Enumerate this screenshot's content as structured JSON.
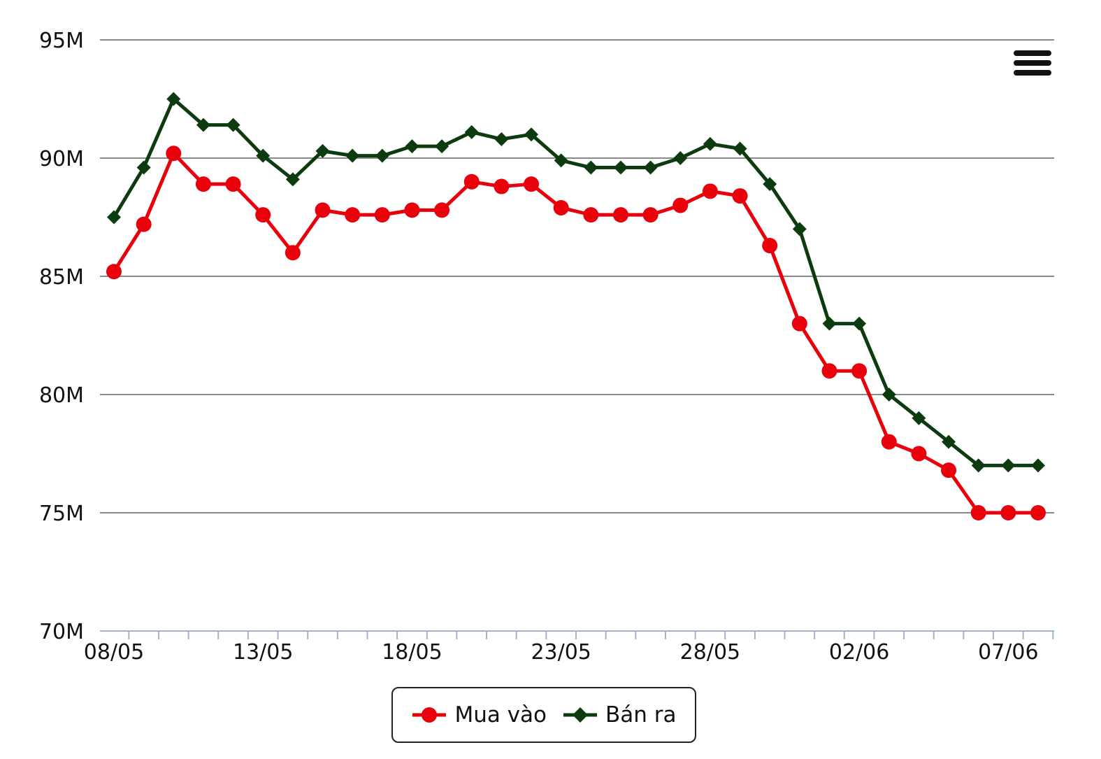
{
  "chart_data": {
    "type": "line",
    "x": [
      "08/05",
      "09/05",
      "10/05",
      "11/05",
      "12/05",
      "13/05",
      "14/05",
      "15/05",
      "16/05",
      "17/05",
      "18/05",
      "19/05",
      "20/05",
      "21/05",
      "22/05",
      "23/05",
      "24/05",
      "25/05",
      "26/05",
      "27/05",
      "28/05",
      "29/05",
      "30/05",
      "31/05",
      "01/06",
      "02/06",
      "03/06",
      "04/06",
      "05/06",
      "06/06",
      "07/06",
      "08/06"
    ],
    "x_tick_labels": [
      "08/05",
      "13/05",
      "18/05",
      "23/05",
      "28/05",
      "02/06",
      "07/06"
    ],
    "y_tick_labels": [
      "70M",
      "75M",
      "80M",
      "85M",
      "90M",
      "95M"
    ],
    "ylim": [
      70,
      95
    ],
    "y_unit": "M",
    "grid": true,
    "legend_position": "bottom",
    "series": [
      {
        "name": "Mua vào",
        "color": "#e8000b",
        "marker": "circle",
        "values": [
          85.2,
          87.2,
          90.2,
          88.9,
          88.9,
          87.6,
          86.0,
          87.8,
          87.6,
          87.6,
          87.8,
          87.8,
          89.0,
          88.8,
          88.9,
          87.9,
          87.6,
          87.6,
          87.6,
          88.0,
          88.6,
          88.4,
          86.3,
          83.0,
          81.0,
          81.0,
          78.0,
          77.5,
          76.8,
          75.0,
          75.0,
          75.0
        ]
      },
      {
        "name": "Bán ra",
        "color": "#0d3b10",
        "marker": "diamond",
        "values": [
          87.5,
          89.6,
          92.5,
          91.4,
          91.4,
          90.1,
          89.1,
          90.3,
          90.1,
          90.1,
          90.5,
          90.5,
          91.1,
          90.8,
          91.0,
          89.9,
          89.6,
          89.6,
          89.6,
          90.0,
          90.6,
          90.4,
          88.9,
          87.0,
          83.0,
          83.0,
          80.0,
          79.0,
          78.0,
          77.0,
          77.0,
          77.0
        ]
      }
    ]
  },
  "menu_icon": "hamburger-menu-icon"
}
